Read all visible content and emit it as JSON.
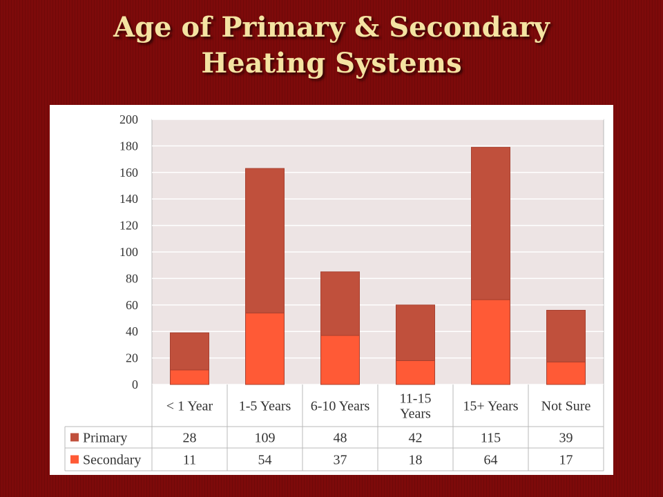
{
  "slide": {
    "title_line1": "Age of Primary & Secondary",
    "title_line2": "Heating Systems"
  },
  "colors": {
    "primary": "#c0503c",
    "secondary": "#ff5a36",
    "plot_background": "#ede4e4",
    "slide_background": "#7d0a0a",
    "title": "#f4e3a2"
  },
  "chart_data": {
    "type": "bar",
    "stacked": true,
    "title": "",
    "xlabel": "",
    "ylabel": "",
    "categories": [
      [
        "< 1 Year"
      ],
      [
        "1-5 Years"
      ],
      [
        "6-10 Years"
      ],
      [
        "11-15",
        "Years"
      ],
      [
        "15+ Years"
      ],
      [
        "Not Sure"
      ]
    ],
    "series": [
      {
        "name": "Secondary",
        "values": [
          11,
          54,
          37,
          18,
          64,
          17
        ]
      },
      {
        "name": "Primary",
        "values": [
          28,
          109,
          48,
          42,
          115,
          39
        ]
      }
    ],
    "table_rows": [
      "Primary",
      "Secondary"
    ],
    "ylim": [
      0,
      200
    ],
    "yticks": [
      0,
      20,
      40,
      60,
      80,
      100,
      120,
      140,
      160,
      180,
      200
    ],
    "grid": true,
    "legend": "data table below chart"
  }
}
